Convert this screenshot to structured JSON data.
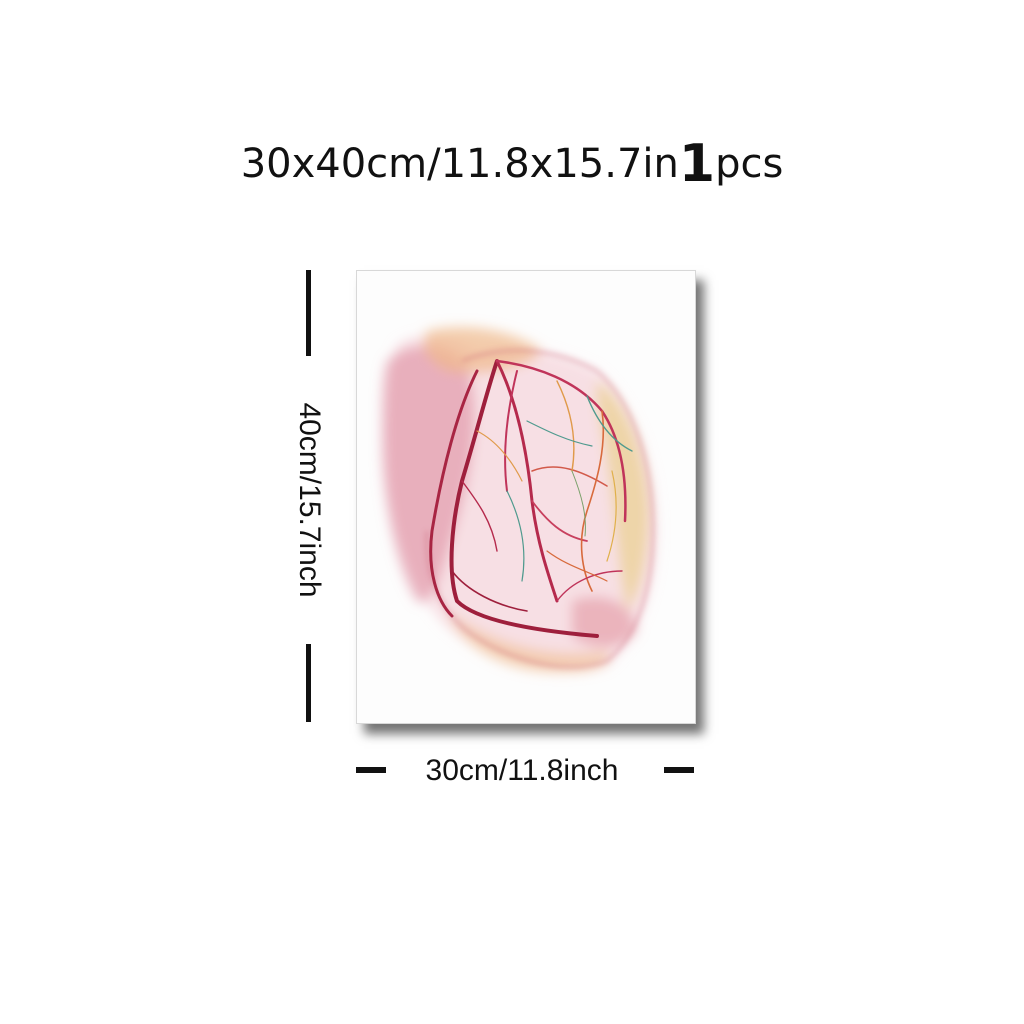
{
  "title": {
    "size": "30x40cm/11.8x15.7in",
    "quantity": "1",
    "unit": "pcs"
  },
  "dimensions": {
    "height_label": "40cm/15.7inch",
    "width_label": "30cm/11.8inch"
  },
  "artwork": {
    "subject": "watercolor-heart-with-coronary-vessels",
    "colors": {
      "vessel_dark": "#9e1f3c",
      "vessel_mid": "#c0345a",
      "wash_pink": "#e9a9b8",
      "wash_peach": "#efc59e",
      "wash_yellow": "#e9cf82",
      "vessel_teal": "#4f9a8e"
    }
  }
}
